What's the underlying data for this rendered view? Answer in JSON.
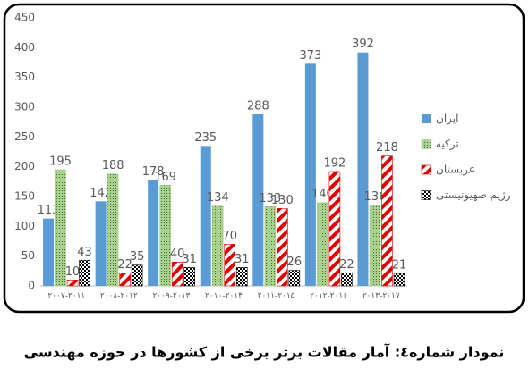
{
  "chart_data": {
    "type": "bar",
    "caption": "نمودار شماره٤: آمار مقالات برتر برخی از کشورها در حوزه مهندسی",
    "categories": [
      "۲۰۰۷-۲۰۱۱",
      "۲۰۰۸-۲۰۱۲",
      "۲۰۰۹-۲۰۱۳",
      "۲۰۱۰-۲۰۱۴",
      "۲۰۱۱-۲۰۱۵",
      "۲۰۱۲-۲۰۱۶",
      "۲۰۱۳-۲۰۱۷"
    ],
    "series": [
      {
        "name": "ایران",
        "color": "#5b9bd5",
        "values": [
          113,
          142,
          178,
          235,
          288,
          373,
          392
        ]
      },
      {
        "name": "ترکیه",
        "color": "#a9d18e",
        "values": [
          195,
          188,
          169,
          134,
          133,
          140,
          136
        ]
      },
      {
        "name": "عربستان",
        "color": "#e00000",
        "values": [
          10,
          22,
          40,
          70,
          130,
          192,
          218
        ]
      },
      {
        "name": "رژیم صهیونیستی",
        "color": "#000000",
        "values": [
          43,
          35,
          31,
          31,
          26,
          22,
          21
        ]
      }
    ],
    "ylim": [
      0,
      450
    ],
    "yticks": [
      0,
      50,
      100,
      150,
      200,
      250,
      300,
      350,
      400,
      450
    ],
    "grid": false
  }
}
